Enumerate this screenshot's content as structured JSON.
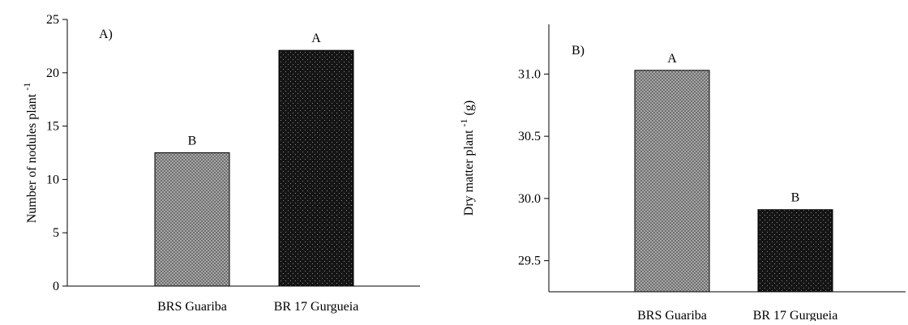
{
  "chart_data": [
    {
      "type": "bar",
      "panel_label": "A)",
      "categories": [
        "BRS Guariba",
        "BR 17 Gurgueia"
      ],
      "values": [
        12.5,
        22.1
      ],
      "significance_letters": [
        "B",
        "A"
      ],
      "ylabel": "Number of nodules plant",
      "ylabel_superscript": "-1",
      "xlabel": "",
      "ylim": [
        0,
        25
      ],
      "yticks": [
        "0",
        "5",
        "10",
        "15",
        "20",
        "25"
      ],
      "ytick_values": [
        0,
        5,
        10,
        15,
        20,
        25
      ],
      "grid": false,
      "bar_colors": [
        "#9a9a9a",
        "#1a1a1a"
      ]
    },
    {
      "type": "bar",
      "panel_label": "B)",
      "categories": [
        "BRS Guariba",
        "BR 17 Gurgueia"
      ],
      "values": [
        31.03,
        29.91
      ],
      "significance_letters": [
        "A",
        "B"
      ],
      "ylabel": "Dry matter plant",
      "ylabel_superscript": "-1",
      "ylabel_unit": "(g)",
      "xlabel": "",
      "ylim": [
        29.25,
        31.4
      ],
      "yticks": [
        "29.5",
        "30.0",
        "30.5",
        "31.0"
      ],
      "ytick_values": [
        29.5,
        30.0,
        30.5,
        31.0
      ],
      "grid": false,
      "bar_colors": [
        "#9a9a9a",
        "#1a1a1a"
      ]
    }
  ]
}
